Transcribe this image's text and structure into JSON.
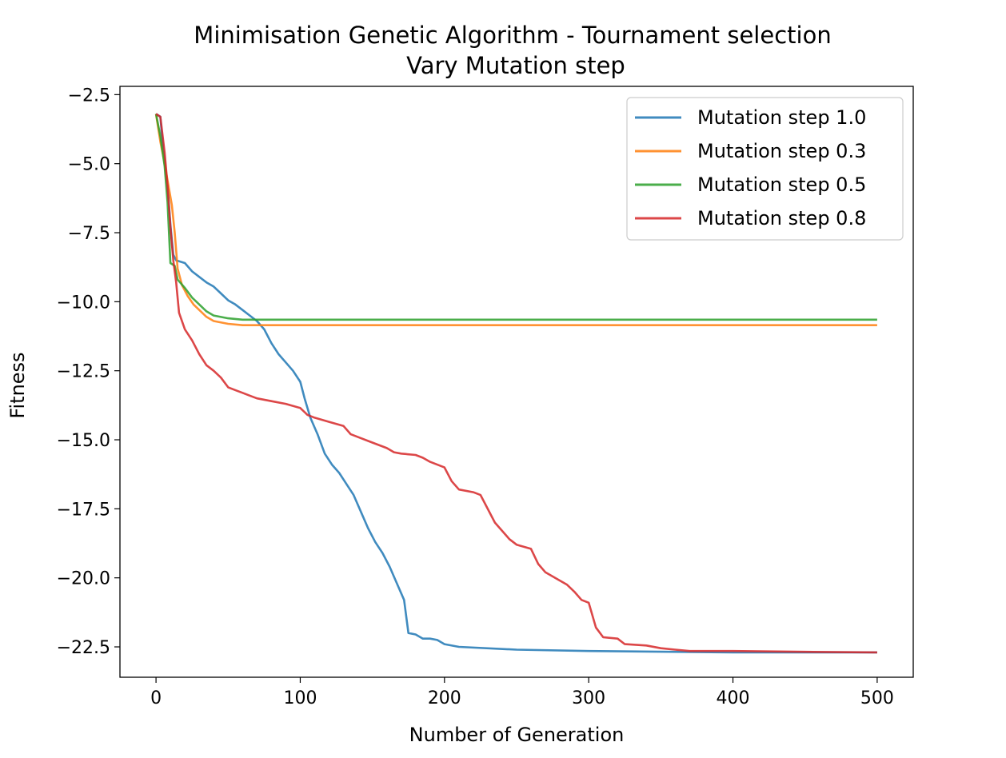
{
  "chart_data": {
    "type": "line",
    "title": "Minimisation Genetic Algorithm - Tournament selection",
    "subtitle": "Vary Mutation step",
    "xlabel": "Number of Generation",
    "ylabel": "Fitness",
    "xlim": [
      -25,
      525
    ],
    "ylim": [
      -23.6,
      -2.2
    ],
    "xticks": [
      0,
      100,
      200,
      300,
      400,
      500
    ],
    "yticks": [
      -2.5,
      -5.0,
      -7.5,
      -10.0,
      -12.5,
      -15.0,
      -17.5,
      -20.0,
      -22.5
    ],
    "xtick_labels": [
      "0",
      "100",
      "200",
      "300",
      "400",
      "500"
    ],
    "ytick_labels": [
      "−2.5",
      "−5.0",
      "−7.5",
      "−10.0",
      "−12.5",
      "−15.0",
      "−17.5",
      "−20.0",
      "−22.5"
    ],
    "grid": false,
    "legend_position": "top-right",
    "series": [
      {
        "name": "Mutation step 1.0",
        "color": "#1f77b4",
        "points": [
          [
            0,
            -3.2
          ],
          [
            3,
            -3.3
          ],
          [
            5,
            -4.5
          ],
          [
            8,
            -5.8
          ],
          [
            10,
            -7.2
          ],
          [
            12,
            -8.3
          ],
          [
            14,
            -8.5
          ],
          [
            20,
            -8.6
          ],
          [
            25,
            -8.9
          ],
          [
            30,
            -9.1
          ],
          [
            35,
            -9.3
          ],
          [
            40,
            -9.45
          ],
          [
            45,
            -9.7
          ],
          [
            50,
            -9.95
          ],
          [
            55,
            -10.1
          ],
          [
            60,
            -10.3
          ],
          [
            65,
            -10.5
          ],
          [
            70,
            -10.7
          ],
          [
            75,
            -11.0
          ],
          [
            80,
            -11.5
          ],
          [
            85,
            -11.9
          ],
          [
            90,
            -12.2
          ],
          [
            95,
            -12.5
          ],
          [
            100,
            -12.9
          ],
          [
            103,
            -13.5
          ],
          [
            107,
            -14.2
          ],
          [
            112,
            -14.8
          ],
          [
            117,
            -15.5
          ],
          [
            122,
            -15.9
          ],
          [
            127,
            -16.2
          ],
          [
            132,
            -16.6
          ],
          [
            137,
            -17.0
          ],
          [
            142,
            -17.6
          ],
          [
            147,
            -18.2
          ],
          [
            152,
            -18.7
          ],
          [
            157,
            -19.1
          ],
          [
            162,
            -19.6
          ],
          [
            167,
            -20.2
          ],
          [
            172,
            -20.8
          ],
          [
            175,
            -22.0
          ],
          [
            180,
            -22.05
          ],
          [
            185,
            -22.2
          ],
          [
            190,
            -22.2
          ],
          [
            195,
            -22.25
          ],
          [
            200,
            -22.4
          ],
          [
            210,
            -22.5
          ],
          [
            250,
            -22.6
          ],
          [
            300,
            -22.65
          ],
          [
            400,
            -22.7
          ],
          [
            500,
            -22.7
          ]
        ]
      },
      {
        "name": "Mutation step 0.3",
        "color": "#ff7f0e",
        "points": [
          [
            0,
            -3.2
          ],
          [
            3,
            -4.2
          ],
          [
            6,
            -5.0
          ],
          [
            9,
            -5.9
          ],
          [
            11,
            -6.5
          ],
          [
            13,
            -7.5
          ],
          [
            15,
            -8.8
          ],
          [
            18,
            -9.4
          ],
          [
            22,
            -9.8
          ],
          [
            26,
            -10.1
          ],
          [
            30,
            -10.3
          ],
          [
            35,
            -10.55
          ],
          [
            40,
            -10.7
          ],
          [
            50,
            -10.8
          ],
          [
            60,
            -10.85
          ],
          [
            100,
            -10.85
          ],
          [
            200,
            -10.85
          ],
          [
            500,
            -10.85
          ]
        ]
      },
      {
        "name": "Mutation step 0.5",
        "color": "#2ca02c",
        "points": [
          [
            0,
            -3.2
          ],
          [
            3,
            -4.0
          ],
          [
            6,
            -5.1
          ],
          [
            8,
            -6.4
          ],
          [
            10,
            -8.6
          ],
          [
            13,
            -8.7
          ],
          [
            15,
            -9.2
          ],
          [
            20,
            -9.5
          ],
          [
            25,
            -9.85
          ],
          [
            30,
            -10.1
          ],
          [
            35,
            -10.35
          ],
          [
            40,
            -10.5
          ],
          [
            50,
            -10.6
          ],
          [
            60,
            -10.65
          ],
          [
            100,
            -10.65
          ],
          [
            200,
            -10.65
          ],
          [
            500,
            -10.65
          ]
        ]
      },
      {
        "name": "Mutation step 0.8",
        "color": "#d62728",
        "points": [
          [
            0,
            -3.2
          ],
          [
            3,
            -3.3
          ],
          [
            6,
            -4.6
          ],
          [
            8,
            -5.8
          ],
          [
            10,
            -7.3
          ],
          [
            12,
            -8.5
          ],
          [
            14,
            -9.3
          ],
          [
            16,
            -10.4
          ],
          [
            20,
            -11.0
          ],
          [
            25,
            -11.4
          ],
          [
            30,
            -11.9
          ],
          [
            35,
            -12.3
          ],
          [
            40,
            -12.5
          ],
          [
            45,
            -12.75
          ],
          [
            50,
            -13.1
          ],
          [
            55,
            -13.2
          ],
          [
            60,
            -13.3
          ],
          [
            65,
            -13.4
          ],
          [
            70,
            -13.5
          ],
          [
            80,
            -13.6
          ],
          [
            90,
            -13.7
          ],
          [
            100,
            -13.85
          ],
          [
            105,
            -14.1
          ],
          [
            110,
            -14.2
          ],
          [
            120,
            -14.35
          ],
          [
            130,
            -14.5
          ],
          [
            135,
            -14.8
          ],
          [
            140,
            -14.9
          ],
          [
            150,
            -15.1
          ],
          [
            160,
            -15.3
          ],
          [
            165,
            -15.45
          ],
          [
            170,
            -15.5
          ],
          [
            180,
            -15.55
          ],
          [
            185,
            -15.65
          ],
          [
            190,
            -15.8
          ],
          [
            200,
            -16.0
          ],
          [
            205,
            -16.5
          ],
          [
            210,
            -16.8
          ],
          [
            220,
            -16.9
          ],
          [
            225,
            -17.0
          ],
          [
            230,
            -17.5
          ],
          [
            235,
            -18.0
          ],
          [
            240,
            -18.3
          ],
          [
            245,
            -18.6
          ],
          [
            250,
            -18.8
          ],
          [
            260,
            -18.95
          ],
          [
            265,
            -19.5
          ],
          [
            270,
            -19.8
          ],
          [
            280,
            -20.1
          ],
          [
            285,
            -20.25
          ],
          [
            290,
            -20.5
          ],
          [
            295,
            -20.8
          ],
          [
            300,
            -20.9
          ],
          [
            305,
            -21.8
          ],
          [
            310,
            -22.15
          ],
          [
            320,
            -22.2
          ],
          [
            325,
            -22.4
          ],
          [
            340,
            -22.45
          ],
          [
            350,
            -22.55
          ],
          [
            360,
            -22.6
          ],
          [
            370,
            -22.65
          ],
          [
            400,
            -22.65
          ],
          [
            450,
            -22.68
          ],
          [
            500,
            -22.7
          ]
        ]
      }
    ]
  }
}
